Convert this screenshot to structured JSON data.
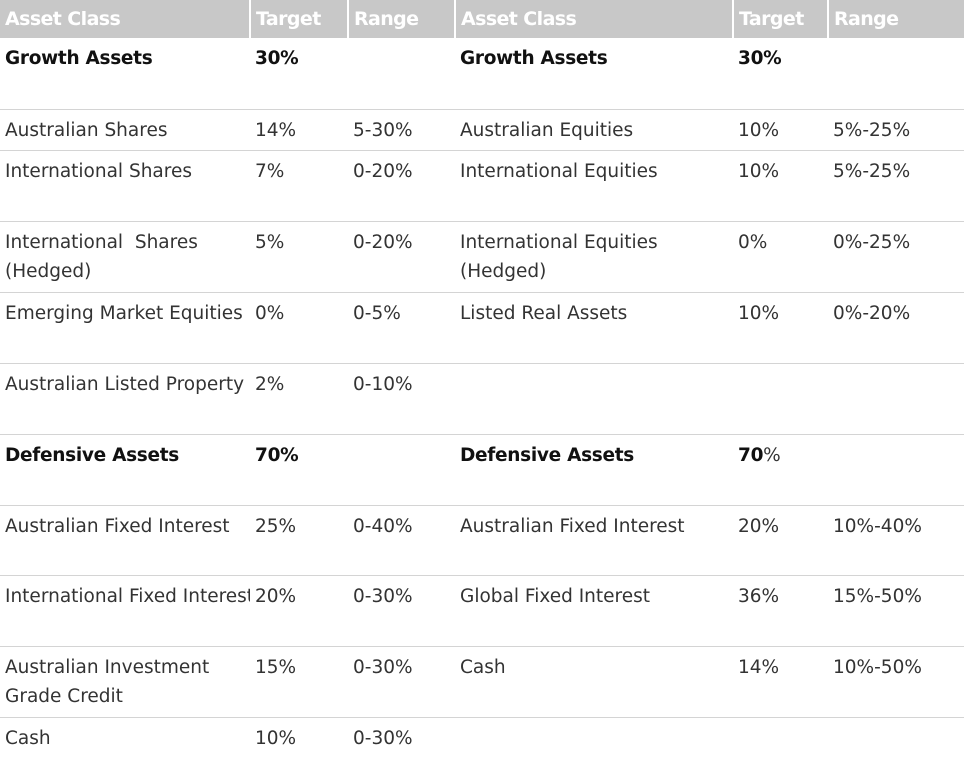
{
  "headers": [
    {
      "asset_class": "Asset Class",
      "target": "Target",
      "range": "Range"
    },
    {
      "asset_class": "Asset Class",
      "target": "Target",
      "range": "Range"
    }
  ],
  "rows": [
    {
      "section": true,
      "left": {
        "asset": "Growth Assets",
        "target": "30%",
        "range": ""
      },
      "right": {
        "asset": "Growth Assets",
        "target": "30%",
        "range": ""
      }
    },
    {
      "section": false,
      "left": {
        "asset": "Australian Shares",
        "target": "14%",
        "range": "5-30%"
      },
      "right": {
        "asset": "Australian Equities",
        "target": "10%",
        "range": "5%-25%"
      }
    },
    {
      "section": false,
      "left": {
        "asset": "International Shares",
        "target": "7%",
        "range": "0-20%"
      },
      "right": {
        "asset": "International Equities",
        "target": "10%",
        "range": "5%-25%"
      }
    },
    {
      "section": false,
      "left": {
        "asset": "International  Shares (Hedged)",
        "target": "5%",
        "range": "0-20%"
      },
      "right": {
        "asset": "International Equities (Hedged)",
        "target": "0%",
        "range": "0%-25%"
      }
    },
    {
      "section": false,
      "left": {
        "asset": "Emerging Market Equities",
        "target": "0%",
        "range": "0-5%"
      },
      "right": {
        "asset": "Listed Real Assets",
        "target": "10%",
        "range": "0%-20%"
      }
    },
    {
      "section": false,
      "left": {
        "asset": "Australian Listed Property",
        "target": "2%",
        "range": "0-10%"
      },
      "right": {
        "asset": "",
        "target": "",
        "range": ""
      }
    },
    {
      "section": true,
      "left": {
        "asset": "Defensive Assets",
        "target": "70%",
        "range": ""
      },
      "right": {
        "asset": "Defensive Assets",
        "target_bold": "70",
        "target_rest": "%",
        "range": ""
      }
    },
    {
      "section": false,
      "left": {
        "asset": "Australian Fixed Interest",
        "target": "25%",
        "range": "0-40%"
      },
      "right": {
        "asset": "Australian Fixed Interest",
        "target": "20%",
        "range": "10%-40%"
      }
    },
    {
      "section": false,
      "left": {
        "asset": "International Fixed Interest",
        "target": "20%",
        "range": "0-30%"
      },
      "right": {
        "asset": "Global Fixed Interest",
        "target": "36%",
        "range": "15%-50%"
      }
    },
    {
      "section": false,
      "left": {
        "asset": "Australian Investment Grade Credit",
        "target": "15%",
        "range": "0-30%"
      },
      "right": {
        "asset": "Cash",
        "target": "14%",
        "range": "10%-50%"
      }
    },
    {
      "section": false,
      "left": {
        "asset": "Cash",
        "target": "10%",
        "range": "0-30%"
      },
      "right": {
        "asset": "",
        "target": "",
        "range": ""
      }
    }
  ]
}
